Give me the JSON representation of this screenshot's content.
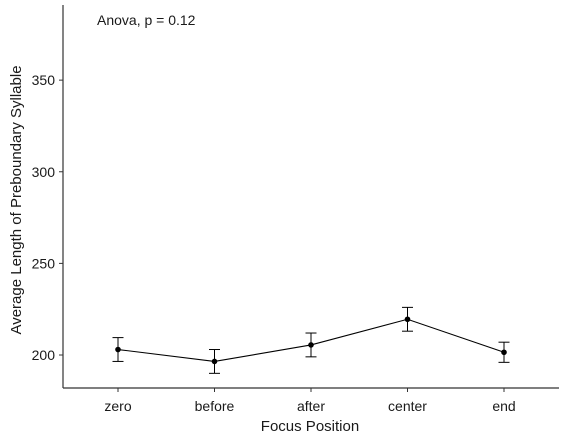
{
  "chart_data": {
    "type": "line",
    "annotation": "Anova, p = 0.12",
    "xlabel": "Focus Position",
    "ylabel": "Average Length of  Preboundary Syllable",
    "categories": [
      "zero",
      "before",
      "after",
      "center",
      "end"
    ],
    "series": [
      {
        "values": [
          203,
          196.5,
          205.5,
          219.5,
          201.5
        ],
        "error_low": [
          196.5,
          190,
          199,
          213,
          196
        ],
        "error_high": [
          209.5,
          203,
          212,
          226,
          207
        ]
      }
    ],
    "ylim": [
      182,
      391
    ],
    "yticks": [
      200,
      250,
      300,
      350
    ],
    "ytick_labels": [
      "200",
      "250",
      "300",
      "350"
    ],
    "grid": false,
    "legend": "none"
  }
}
